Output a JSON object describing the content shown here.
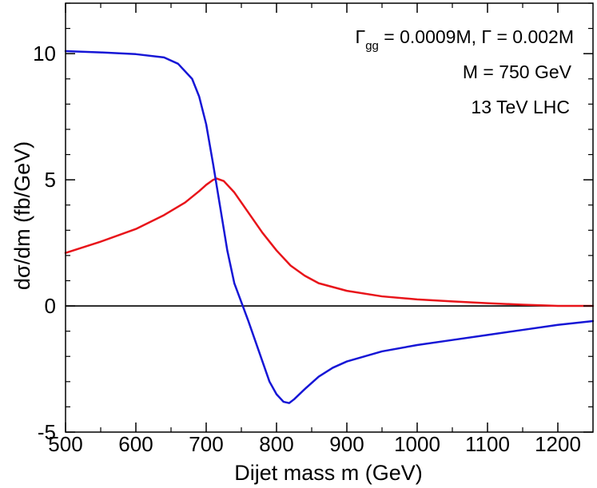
{
  "chart_data": {
    "type": "line",
    "xlabel": "Dijet mass m  (GeV)",
    "ylabel": "dσ/dm   (fb/GeV)",
    "xlim": [
      500,
      1250
    ],
    "ylim": [
      -5,
      12
    ],
    "x_ticks": [
      500,
      600,
      700,
      800,
      900,
      1000,
      1100,
      1200
    ],
    "x_tick_labels": [
      "500",
      "600",
      "700",
      "800",
      "900",
      "1000",
      "1100",
      "1200"
    ],
    "y_ticks": [
      -5,
      0,
      5,
      10
    ],
    "y_tick_labels": [
      "-5",
      "0",
      "5",
      "10"
    ],
    "annotations": {
      "line1_gamma_symbol": "Γ",
      "line1_subscript": "gg",
      "line1_rest": " = 0.0009M,  Γ = 0.002M",
      "line2": "M = 750 GeV",
      "line3": "13 TeV LHC"
    },
    "series": [
      {
        "name": "red",
        "color": "#e8141a",
        "x": [
          500,
          550,
          600,
          640,
          670,
          690,
          700,
          710,
          715,
          725,
          740,
          760,
          780,
          800,
          820,
          840,
          860,
          900,
          950,
          1000,
          1050,
          1100,
          1150,
          1180,
          1200,
          1250
        ],
        "y": [
          2.1,
          2.55,
          3.05,
          3.6,
          4.1,
          4.55,
          4.8,
          5.0,
          5.05,
          4.95,
          4.5,
          3.7,
          2.9,
          2.2,
          1.6,
          1.2,
          0.9,
          0.6,
          0.38,
          0.26,
          0.18,
          0.11,
          0.05,
          0.02,
          0.0,
          0.0
        ]
      },
      {
        "name": "blue",
        "color": "#1616d6",
        "x": [
          500,
          550,
          600,
          640,
          660,
          680,
          690,
          700,
          710,
          720,
          730,
          740,
          750,
          760,
          770,
          780,
          790,
          800,
          810,
          818,
          825,
          840,
          860,
          880,
          900,
          950,
          1000,
          1050,
          1100,
          1150,
          1200,
          1250
        ],
        "y": [
          10.1,
          10.05,
          9.98,
          9.85,
          9.6,
          9.0,
          8.3,
          7.2,
          5.6,
          3.9,
          2.2,
          0.9,
          0.15,
          -0.6,
          -1.4,
          -2.2,
          -3.0,
          -3.5,
          -3.8,
          -3.85,
          -3.7,
          -3.3,
          -2.8,
          -2.45,
          -2.2,
          -1.8,
          -1.55,
          -1.35,
          -1.15,
          -0.95,
          -0.75,
          -0.6
        ]
      }
    ],
    "zero_line": {
      "y": 0,
      "color": "#000000"
    }
  }
}
